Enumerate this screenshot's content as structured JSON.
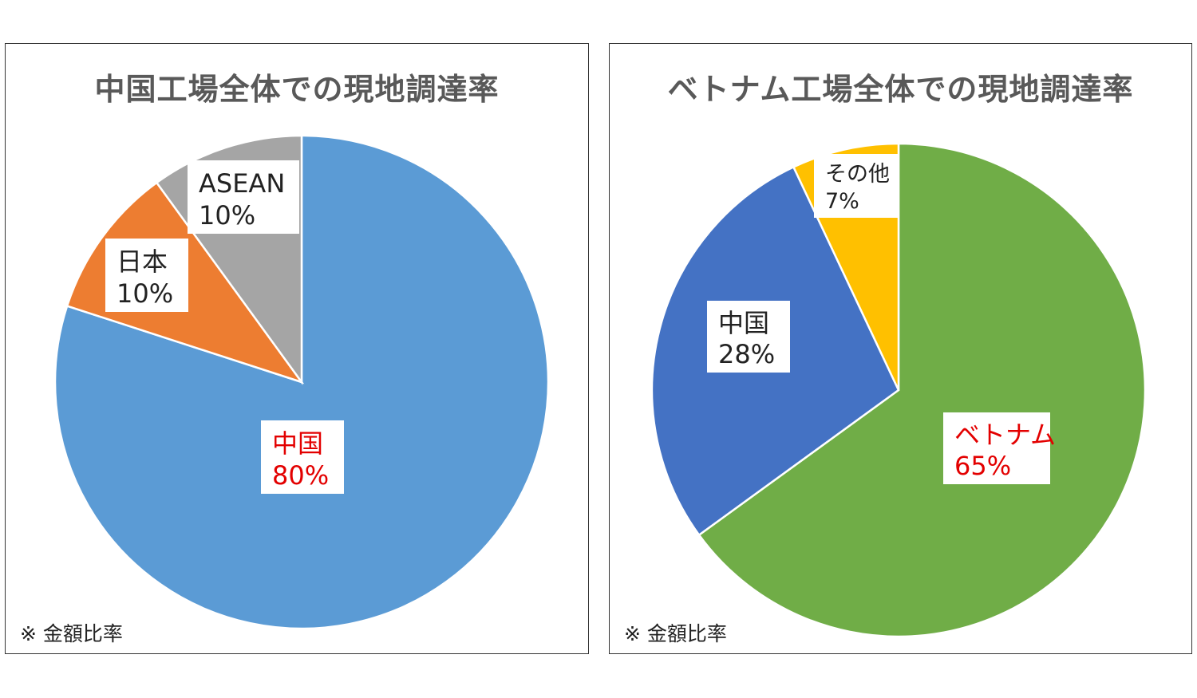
{
  "chart_data": [
    {
      "type": "pie",
      "title": "中国工場全体での現地調達率",
      "note": "※ 金額比率",
      "start": "12 o'clock, clockwise",
      "slices": [
        {
          "label": "中国",
          "value": 80,
          "value_text": "80%",
          "color": "#5B9BD5",
          "label_color": "#E30000"
        },
        {
          "label": "日本",
          "value": 10,
          "value_text": "10%",
          "color": "#ED7D31",
          "label_color": "#222222"
        },
        {
          "label": "ASEAN",
          "value": 10,
          "value_text": "10%",
          "color": "#A5A5A5",
          "label_color": "#222222"
        }
      ]
    },
    {
      "type": "pie",
      "title": "ベトナム工場全体での現地調達率",
      "note": "※ 金額比率",
      "start": "12 o'clock, clockwise",
      "slices": [
        {
          "label": "ベトナム",
          "value": 65,
          "value_text": "65%",
          "color": "#70AD47",
          "label_color": "#E30000"
        },
        {
          "label": "中国",
          "value": 28,
          "value_text": "28%",
          "color": "#4472C4",
          "label_color": "#222222"
        },
        {
          "label": "その他",
          "value": 7,
          "value_text": "7%",
          "color": "#FFC000",
          "label_color": "#222222"
        }
      ]
    }
  ]
}
